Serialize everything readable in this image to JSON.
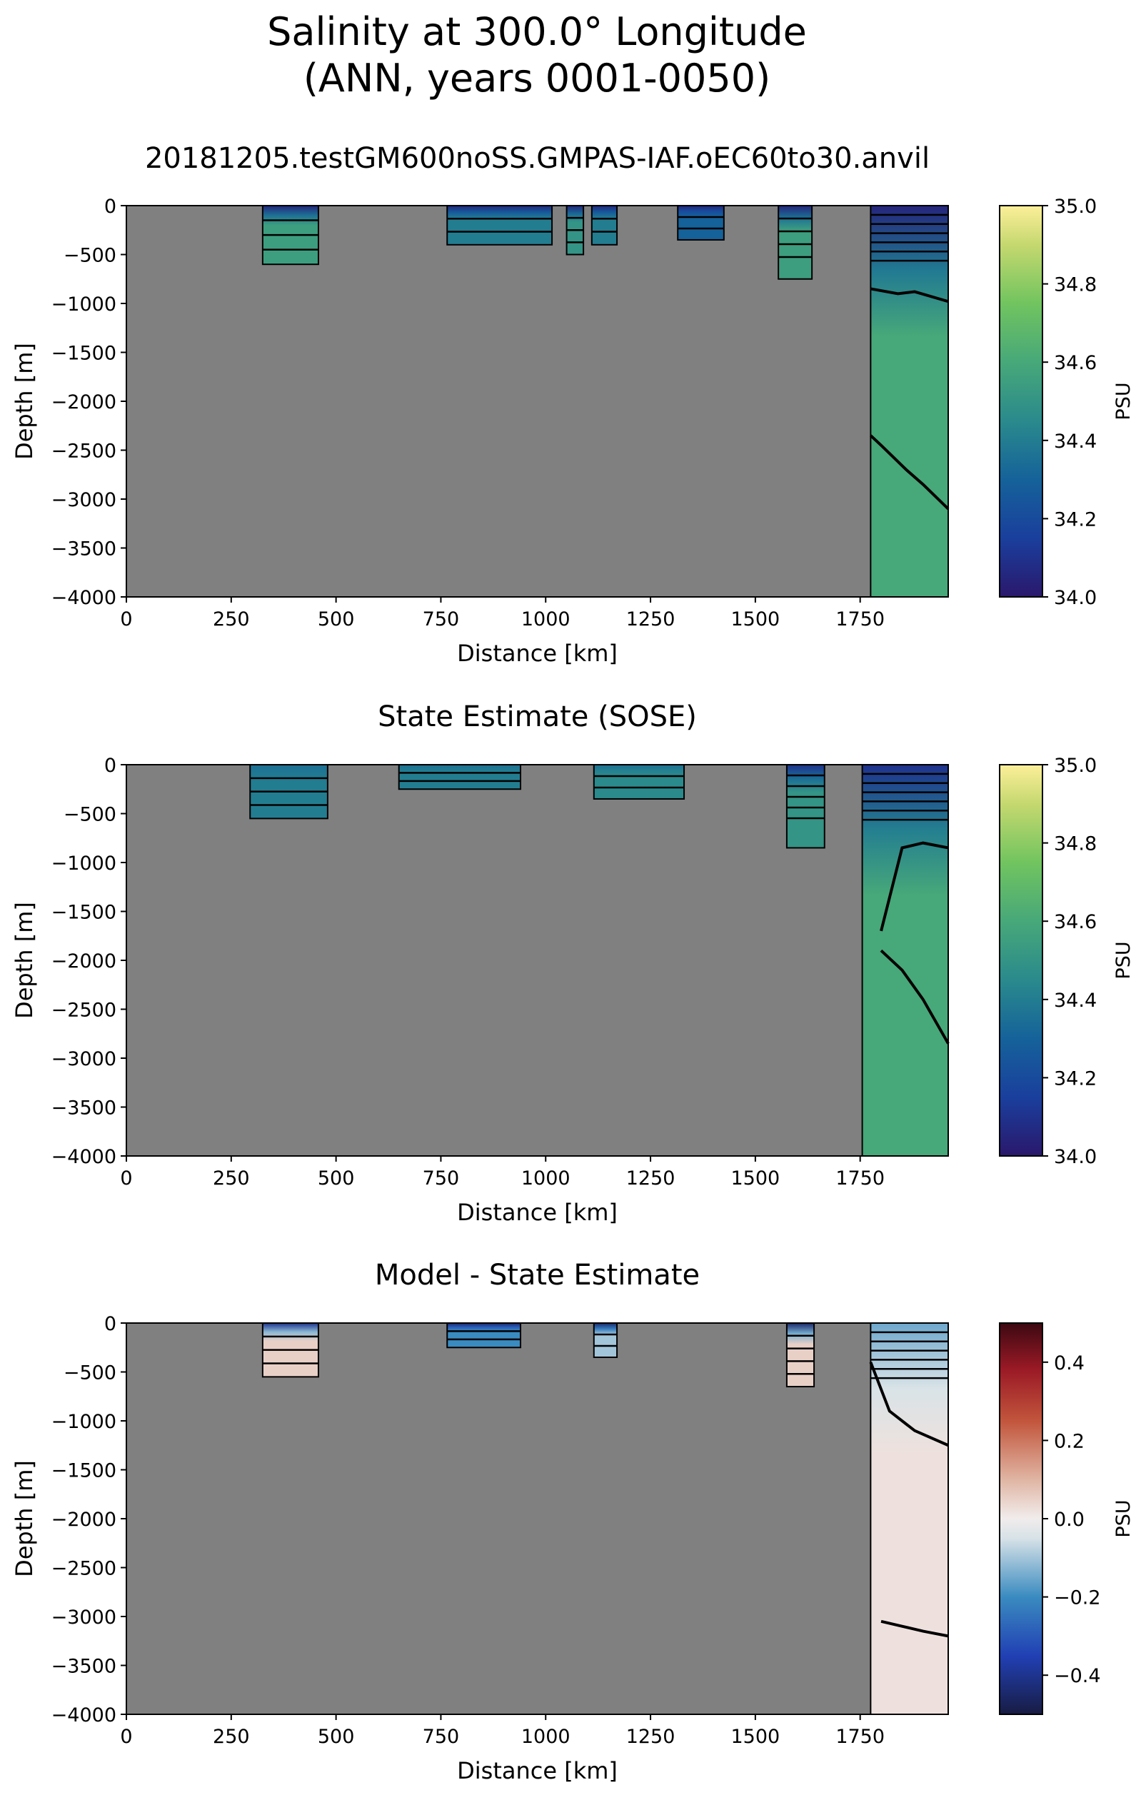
{
  "suptitle_line1": "Salinity at 300.0° Longitude",
  "suptitle_line2": "(ANN, years 0001-0050)",
  "chart_data": [
    {
      "type": "heatmap",
      "title": "20181205.testGM600noSS.GMPAS-IAF.oEC60to30.anvil",
      "xlabel": "Distance [km]",
      "ylabel": "Depth [m]",
      "xlim": [
        0,
        1960
      ],
      "ylim": [
        -4000,
        0
      ],
      "xticks": [
        "0",
        "250",
        "500",
        "750",
        "1000",
        "1250",
        "1500",
        "1750"
      ],
      "yticks": [
        "0",
        "−500",
        "−1000",
        "−1500",
        "−2000",
        "−2500",
        "−3000",
        "−3500",
        "−4000"
      ],
      "colorbar": {
        "label": "PSU",
        "vmin": 34.0,
        "vmax": 35.0,
        "ticks": [
          "34.0",
          "34.2",
          "34.4",
          "34.6",
          "34.8",
          "35.0"
        ],
        "colormap": "haline"
      },
      "land_color": "#808080",
      "ocean_segments": [
        {
          "x": [
            325,
            458
          ],
          "bottom": -600,
          "surface_value": 34.05,
          "deep_value": 34.55
        },
        {
          "x": [
            765,
            1015
          ],
          "bottom": -400,
          "surface_value": 34.05,
          "deep_value": 34.4
        },
        {
          "x": [
            1050,
            1090
          ],
          "bottom": -500,
          "surface_value": 34.05,
          "deep_value": 34.5
        },
        {
          "x": [
            1110,
            1170
          ],
          "bottom": -400,
          "surface_value": 34.05,
          "deep_value": 34.4
        },
        {
          "x": [
            1315,
            1425
          ],
          "bottom": -350,
          "surface_value": 34.05,
          "deep_value": 34.3
        },
        {
          "x": [
            1555,
            1635
          ],
          "bottom": -750,
          "surface_value": 34.05,
          "deep_value": 34.55
        },
        {
          "x": [
            1775,
            1960
          ],
          "bottom": -4000,
          "surface_value": 34.05,
          "deep_value": 34.6
        }
      ],
      "contours": [
        {
          "level": 34.5,
          "x": [
            1775,
            1840,
            1880,
            1960
          ],
          "depth": [
            -850,
            -900,
            -880,
            -980
          ]
        },
        {
          "level": 34.6,
          "x": [
            1775,
            1800,
            1860,
            1900,
            1960
          ],
          "depth": [
            -2350,
            -2450,
            -2700,
            -2850,
            -3100
          ]
        }
      ]
    },
    {
      "type": "heatmap",
      "title": "State Estimate (SOSE)",
      "xlabel": "Distance [km]",
      "ylabel": "Depth [m]",
      "xlim": [
        0,
        1960
      ],
      "ylim": [
        -4000,
        0
      ],
      "xticks": [
        "0",
        "250",
        "500",
        "750",
        "1000",
        "1250",
        "1500",
        "1750"
      ],
      "yticks": [
        "0",
        "−500",
        "−1000",
        "−1500",
        "−2000",
        "−2500",
        "−3000",
        "−3500",
        "−4000"
      ],
      "colorbar": {
        "label": "PSU",
        "vmin": 34.0,
        "vmax": 35.0,
        "ticks": [
          "34.0",
          "34.2",
          "34.4",
          "34.6",
          "34.8",
          "35.0"
        ],
        "colormap": "haline"
      },
      "land_color": "#808080",
      "ocean_segments": [
        {
          "x": [
            295,
            480
          ],
          "bottom": -550,
          "surface_value": 34.35,
          "deep_value": 34.4
        },
        {
          "x": [
            650,
            940
          ],
          "bottom": -250,
          "surface_value": 34.35,
          "deep_value": 34.4
        },
        {
          "x": [
            1115,
            1330
          ],
          "bottom": -350,
          "surface_value": 34.35,
          "deep_value": 34.45
        },
        {
          "x": [
            1575,
            1665
          ],
          "bottom": -850,
          "surface_value": 34.1,
          "deep_value": 34.5
        },
        {
          "x": [
            1755,
            1960
          ],
          "bottom": -4000,
          "surface_value": 34.1,
          "deep_value": 34.6
        }
      ],
      "contours": [
        {
          "level": 34.5,
          "x": [
            1800,
            1850,
            1900,
            1960
          ],
          "depth": [
            -1700,
            -850,
            -800,
            -850
          ]
        },
        {
          "level": 34.6,
          "x": [
            1800,
            1850,
            1900,
            1960
          ],
          "depth": [
            -1900,
            -2100,
            -2400,
            -2850
          ]
        }
      ]
    },
    {
      "type": "heatmap",
      "title": "Model - State Estimate",
      "xlabel": "Distance [km]",
      "ylabel": "Depth [m]",
      "xlim": [
        0,
        1960
      ],
      "ylim": [
        -4000,
        0
      ],
      "xticks": [
        "0",
        "250",
        "500",
        "750",
        "1000",
        "1250",
        "1500",
        "1750"
      ],
      "yticks": [
        "0",
        "−500",
        "−1000",
        "−1500",
        "−2000",
        "−2500",
        "−3000",
        "−3500",
        "−4000"
      ],
      "colorbar": {
        "label": "PSU",
        "vmin": -0.5,
        "vmax": 0.5,
        "ticks": [
          "−0.4",
          "−0.2",
          "0.0",
          "0.2",
          "0.4"
        ],
        "colormap": "balance"
      },
      "land_color": "#808080",
      "ocean_segments": [
        {
          "x": [
            325,
            458
          ],
          "bottom": -550,
          "surface_value": -0.4,
          "deep_value": 0.05
        },
        {
          "x": [
            765,
            940
          ],
          "bottom": -250,
          "surface_value": -0.45,
          "deep_value": -0.2
        },
        {
          "x": [
            1115,
            1170
          ],
          "bottom": -350,
          "surface_value": -0.45,
          "deep_value": -0.1
        },
        {
          "x": [
            1575,
            1640
          ],
          "bottom": -650,
          "surface_value": -0.45,
          "deep_value": 0.05
        },
        {
          "x": [
            1775,
            1960
          ],
          "bottom": -4000,
          "surface_value": -0.15,
          "deep_value": 0.02
        }
      ],
      "contours": [
        {
          "level": 0.0,
          "x": [
            1775,
            1820,
            1880,
            1960
          ],
          "depth": [
            -400,
            -900,
            -1100,
            -1250
          ]
        },
        {
          "level": 0.0,
          "x": [
            1800,
            1850,
            1900,
            1960
          ],
          "depth": [
            -3050,
            -3100,
            -3150,
            -3200
          ]
        }
      ]
    }
  ]
}
